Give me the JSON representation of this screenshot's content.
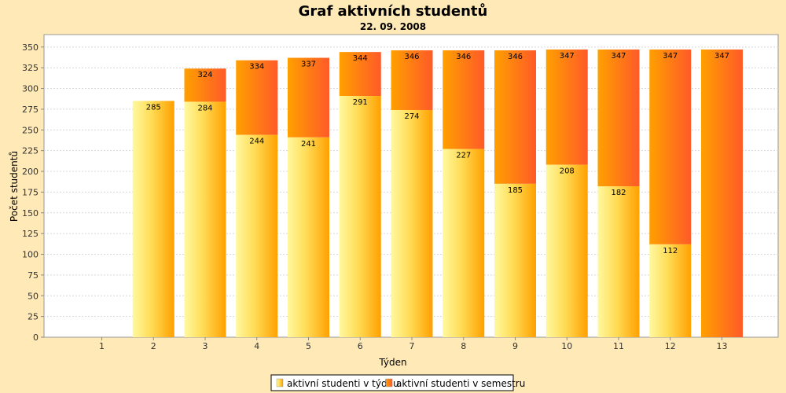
{
  "chart_data": {
    "type": "bar",
    "title": "Graf aktivních studentů",
    "subtitle": "22. 09. 2008",
    "xlabel": "Týden",
    "ylabel": "Počet studentů",
    "ylim": [
      0,
      365
    ],
    "yticks": [
      0,
      25,
      50,
      75,
      100,
      125,
      150,
      175,
      200,
      225,
      250,
      275,
      300,
      325,
      350
    ],
    "grid": true,
    "legend_position": "bottom",
    "categories": [
      "1",
      "2",
      "3",
      "4",
      "5",
      "6",
      "7",
      "8",
      "9",
      "10",
      "11",
      "12",
      "13"
    ],
    "series": [
      {
        "name": "aktivní studenti v týdnu",
        "values": [
          0,
          285,
          284,
          244,
          241,
          291,
          274,
          227,
          185,
          208,
          182,
          112,
          0
        ],
        "labels": [
          "",
          "285",
          "284",
          "244",
          "241",
          "291",
          "274",
          "227",
          "185",
          "208",
          "182",
          "112",
          ""
        ],
        "color": "#FFD700"
      },
      {
        "name": "aktivní studenti v semestru",
        "values": [
          0,
          285,
          324,
          334,
          337,
          344,
          346,
          346,
          346,
          347,
          347,
          347,
          347
        ],
        "labels": [
          "",
          "",
          "324",
          "334",
          "337",
          "344",
          "346",
          "346",
          "346",
          "347",
          "347",
          "347",
          "347"
        ],
        "color": "#FF6A1F"
      }
    ]
  }
}
